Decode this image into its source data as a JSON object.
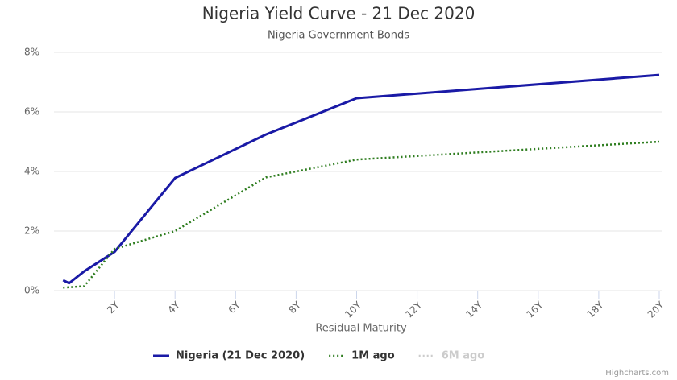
{
  "chart_data": {
    "type": "line",
    "title": "Nigeria Yield Curve - 21 Dec 2020",
    "subtitle": "Nigeria Government Bonds",
    "x_label": "Residual Maturity",
    "credits": "Highcharts.com",
    "xlim": [
      0,
      20
    ],
    "xticks": [
      {
        "value": 2,
        "label": "2Y"
      },
      {
        "value": 4,
        "label": "4Y"
      },
      {
        "value": 6,
        "label": "6Y"
      },
      {
        "value": 8,
        "label": "8Y"
      },
      {
        "value": 10,
        "label": "10Y"
      },
      {
        "value": 12,
        "label": "12Y"
      },
      {
        "value": 14,
        "label": "14Y"
      },
      {
        "value": 16,
        "label": "16Y"
      },
      {
        "value": 18,
        "label": "18Y"
      },
      {
        "value": 20,
        "label": "20Y"
      }
    ],
    "ylim": [
      0,
      8
    ],
    "yticks": [
      {
        "value": 0,
        "label": "0%"
      },
      {
        "value": 2,
        "label": "2%"
      },
      {
        "value": 4,
        "label": "4%"
      },
      {
        "value": 6,
        "label": "6%"
      },
      {
        "value": 8,
        "label": "8%"
      }
    ],
    "grid": true,
    "legend": "bottom",
    "series": [
      {
        "name": "Nigeria (21 Dec 2020)",
        "color": "#1a1aa6",
        "style": "solid",
        "visible": true,
        "x": [
          0.3,
          0.5,
          1,
          2,
          4,
          7,
          10,
          20
        ],
        "values": [
          0.35,
          0.25,
          0.65,
          1.3,
          3.78,
          5.24,
          6.46,
          7.24
        ]
      },
      {
        "name": "1M ago",
        "color": "#2e7d1f",
        "style": "dotted",
        "visible": true,
        "x": [
          0.3,
          1,
          2,
          4,
          7,
          10,
          20
        ],
        "values": [
          0.1,
          0.15,
          1.4,
          2.0,
          3.8,
          4.4,
          5.0
        ]
      },
      {
        "name": "6M ago",
        "color": "#cccccc",
        "style": "dotted",
        "visible": false,
        "x": [],
        "values": []
      }
    ]
  }
}
